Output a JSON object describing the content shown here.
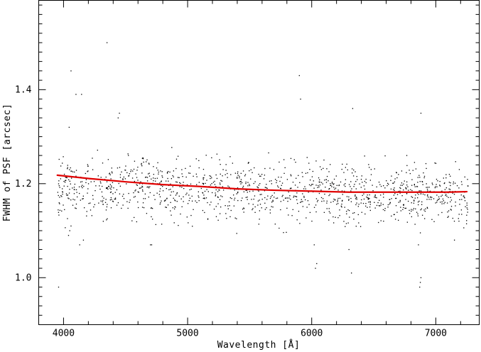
{
  "chart_data": {
    "type": "scatter",
    "title": "",
    "xlabel": "Wavelength [Å]",
    "ylabel": "FWHM of PSF [arcsec]",
    "xlim": [
      3800,
      7350
    ],
    "ylim": [
      0.9,
      1.59
    ],
    "xticks": [
      4000,
      5000,
      6000,
      7000
    ],
    "yticks": [
      1.0,
      1.2,
      1.4
    ],
    "xtick_labels": [
      "4000",
      "5000",
      "6000",
      "7000"
    ],
    "ytick_labels": [
      "1.0",
      "1.2",
      "1.4"
    ],
    "grid": false,
    "legend": "none",
    "colors": {
      "points": "#000000",
      "fit": "#e00000",
      "axes": "#000000"
    },
    "series": [
      {
        "kind": "scatter",
        "x_range": [
          3950,
          7260
        ],
        "n_points": 1300,
        "y_center": 1.19,
        "y_spread": 0.045,
        "outliers": [
          {
            "x": 4060,
            "y": 1.44
          },
          {
            "x": 4100,
            "y": 1.39
          },
          {
            "x": 4145,
            "y": 1.39
          },
          {
            "x": 4350,
            "y": 1.5
          },
          {
            "x": 4450,
            "y": 1.35
          },
          {
            "x": 4440,
            "y": 1.34
          },
          {
            "x": 5900,
            "y": 1.43
          },
          {
            "x": 5910,
            "y": 1.38
          },
          {
            "x": 6330,
            "y": 1.36
          },
          {
            "x": 6880,
            "y": 1.35
          },
          {
            "x": 3960,
            "y": 0.98
          },
          {
            "x": 4040,
            "y": 1.09
          },
          {
            "x": 4050,
            "y": 1.1
          },
          {
            "x": 4060,
            "y": 1.11
          },
          {
            "x": 4045,
            "y": 1.32
          },
          {
            "x": 4130,
            "y": 1.07
          },
          {
            "x": 4160,
            "y": 1.08
          },
          {
            "x": 4320,
            "y": 1.12
          },
          {
            "x": 4700,
            "y": 1.07
          },
          {
            "x": 4710,
            "y": 1.07
          },
          {
            "x": 6020,
            "y": 1.07
          },
          {
            "x": 6030,
            "y": 1.02
          },
          {
            "x": 6040,
            "y": 1.03
          },
          {
            "x": 6300,
            "y": 1.06
          },
          {
            "x": 6320,
            "y": 1.01
          },
          {
            "x": 6870,
            "y": 0.98
          },
          {
            "x": 6875,
            "y": 0.99
          },
          {
            "x": 6880,
            "y": 1.0
          },
          {
            "x": 6860,
            "y": 1.07
          },
          {
            "x": 7150,
            "y": 1.08
          }
        ]
      },
      {
        "kind": "line",
        "x": [
          3950,
          4200,
          4500,
          4800,
          5100,
          5400,
          5700,
          6000,
          6300,
          6600,
          6900,
          7100,
          7250
        ],
        "y": [
          1.218,
          1.211,
          1.204,
          1.198,
          1.194,
          1.189,
          1.186,
          1.184,
          1.182,
          1.182,
          1.182,
          1.182,
          1.183
        ]
      }
    ]
  }
}
